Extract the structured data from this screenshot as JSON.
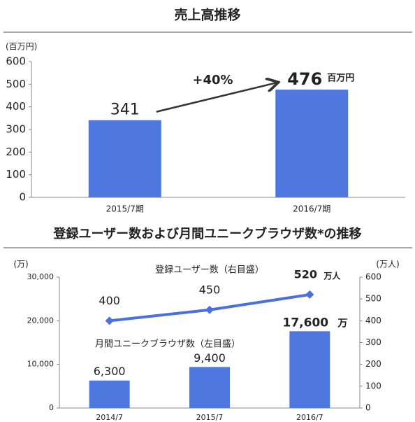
{
  "chart_data": [
    {
      "type": "bar",
      "title": "売上高推移",
      "y_label": "(百万円)",
      "categories": [
        "2015/7期",
        "2016/7期"
      ],
      "values": [
        341,
        476
      ],
      "color": "#4e78e0",
      "last_value_unit": "百万円",
      "growth_label": "+40%",
      "ylim": [
        0,
        600
      ],
      "yticks": [
        0,
        100,
        200,
        300,
        400,
        500,
        600
      ],
      "grid": false
    },
    {
      "type": "combo",
      "title": "登録ユーザー数および月間ユニークブラウザ数*の推移",
      "y_label": "(万)",
      "y2_label": "(万人)",
      "categories": [
        "2014/7",
        "2015/7",
        "2016/7"
      ],
      "series": [
        {
          "name": "月間ユニークブラウザ数（左目盛）",
          "type": "bar",
          "color": "#4e78e0",
          "axis": "y",
          "values": [
            6300,
            9400,
            17600
          ],
          "value_labels": [
            "6,300",
            "9,400",
            "17,600"
          ],
          "last_value_unit": "万"
        },
        {
          "name": "登録ユーザー数（右目盛）",
          "type": "line",
          "color": "#4a6fdf",
          "axis": "y2",
          "values": [
            400,
            450,
            520
          ],
          "last_value_unit": "万人"
        }
      ],
      "ylim": [
        0,
        30000
      ],
      "yticks": [
        0,
        {
          "value": 10000,
          "label": "10,000"
        },
        {
          "value": 20000,
          "label": "20,000"
        },
        {
          "value": 30000,
          "label": "30,000"
        }
      ],
      "y2lim": [
        0,
        600
      ],
      "y2ticks": [
        0,
        100,
        200,
        300,
        400,
        500,
        600
      ],
      "grid": false
    }
  ]
}
